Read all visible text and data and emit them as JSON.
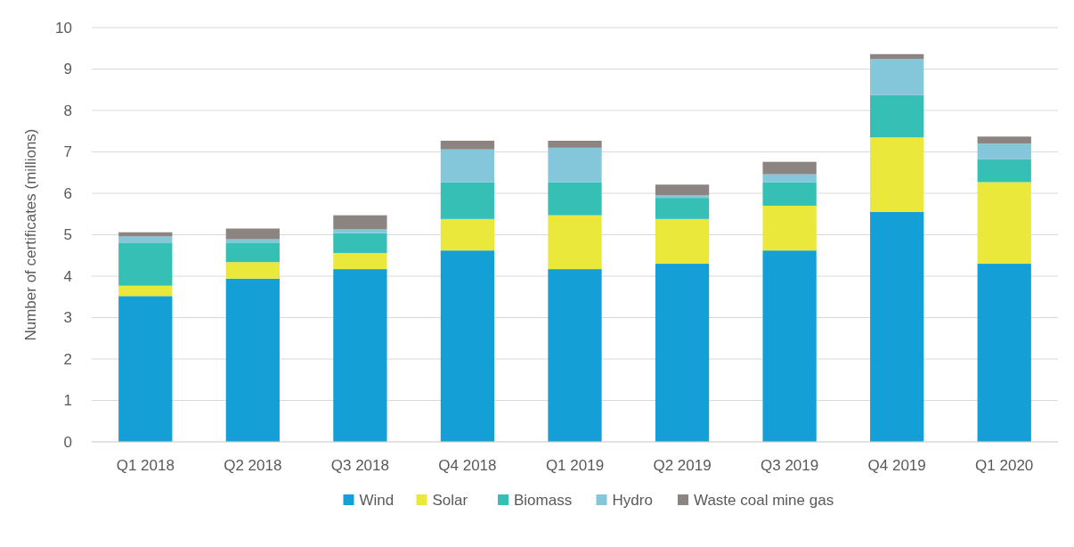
{
  "chart_data": {
    "type": "bar",
    "stacked": true,
    "ylabel": "Number of certificates (millions)",
    "categories": [
      "Q1 2018",
      "Q2 2018",
      "Q3 2018",
      "Q4 2018",
      "Q1 2019",
      "Q2 2019",
      "Q3 2019",
      "Q4 2019",
      "Q1 2020"
    ],
    "series": [
      {
        "name": "Wind",
        "color": "#14a0d6",
        "values": [
          3.52,
          3.94,
          4.17,
          4.62,
          4.17,
          4.3,
          4.62,
          5.55,
          4.3
        ]
      },
      {
        "name": "Solar",
        "color": "#ebe83c",
        "values": [
          0.25,
          0.4,
          0.39,
          0.76,
          1.3,
          1.08,
          1.08,
          1.8,
          1.97
        ]
      },
      {
        "name": "Biomass",
        "color": "#36bfb5",
        "values": [
          1.04,
          0.47,
          0.48,
          0.89,
          0.8,
          0.51,
          0.57,
          1.02,
          0.55
        ]
      },
      {
        "name": "Hydro",
        "color": "#84c7da",
        "values": [
          0.15,
          0.08,
          0.09,
          0.79,
          0.83,
          0.06,
          0.19,
          0.87,
          0.38
        ]
      },
      {
        "name": "Waste coal mine gas",
        "color": "#8c8480",
        "values": [
          0.1,
          0.26,
          0.34,
          0.21,
          0.17,
          0.26,
          0.3,
          0.12,
          0.17
        ]
      }
    ],
    "ylim": [
      0,
      10
    ],
    "yticks": [
      0,
      1,
      2,
      3,
      4,
      5,
      6,
      7,
      8,
      9,
      10
    ],
    "grid": "y",
    "legend": "bottom"
  }
}
